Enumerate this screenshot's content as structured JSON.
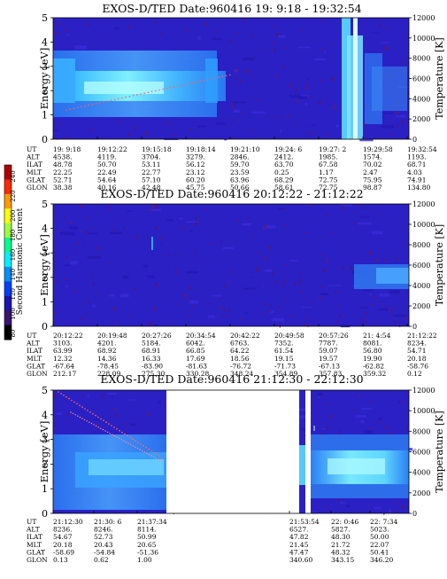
{
  "figure": {
    "colorbar": {
      "label": "Second Harmonic Current",
      "ticks": [
        "240",
        "220",
        "200",
        "180",
        "160",
        "140",
        "120",
        "100",
        "80"
      ],
      "colors": [
        "#b00000",
        "#ff2a00",
        "#ff9a00",
        "#ffff00",
        "#9aff40",
        "#00ff90",
        "#00f0ff",
        "#0090ff",
        "#0040ff",
        "#1a14b0",
        "#3a1470",
        "#000000"
      ]
    }
  },
  "chart_data": [
    {
      "type": "heatmap",
      "title": "EXOS-D/TED   Date:960416  19: 9:18 - 19:32:54",
      "ylabel": "Energy [eV]",
      "y2label": "Temperature [K]",
      "ylim": [
        0,
        5
      ],
      "y2lim": [
        0,
        12000
      ],
      "yticks": [
        "0",
        "1",
        "2",
        "3",
        "4",
        "5"
      ],
      "y2ticks": [
        "0",
        "2000",
        "4000",
        "6000",
        "8000",
        "10000",
        "12000"
      ],
      "row_labels": [
        "UT",
        "ALT",
        "ILAT",
        "MLT",
        "GLAT",
        "GLON"
      ],
      "columns": [
        [
          "19: 9:18",
          "4538.",
          "48.78",
          "22.25",
          "52.71",
          "38.38"
        ],
        [
          "19:12:22",
          "4119.",
          "50.70",
          "22.49",
          "54.64",
          "40.16"
        ],
        [
          "19:15:18",
          "3704.",
          "53.11",
          "22.77",
          "57.10",
          "42.48"
        ],
        [
          "19:18:14",
          "3279.",
          "56.12",
          "23.12",
          "60.20",
          "45.75"
        ],
        [
          "19:21:10",
          "2846.",
          "59.70",
          "23.59",
          "63.96",
          "50.66"
        ],
        [
          "19:24: 6",
          "2412.",
          "63.70",
          "0.25",
          "68.29",
          "58.61"
        ],
        [
          "19:27: 2",
          "1985.",
          "67.58",
          "1.17",
          "72.75",
          "72.75"
        ],
        [
          "19:29:58",
          "1574.",
          "70.02",
          "2.47",
          "75.95",
          "98.87"
        ],
        [
          "19:32:54",
          "1193.",
          "68.71",
          "4.03",
          "74.91",
          "134.80"
        ]
      ]
    },
    {
      "type": "heatmap",
      "title": "EXOS-D/TED   Date:960416  20:12:22 - 21:12:22",
      "ylabel": "Energy [eV]",
      "y2label": "Temperature [K]",
      "ylim": [
        0,
        5
      ],
      "y2lim": [
        0,
        12000
      ],
      "yticks": [
        "0",
        "1",
        "2",
        "3",
        "4",
        "5"
      ],
      "y2ticks": [
        "0",
        "2000",
        "4000",
        "6000",
        "8000",
        "10000",
        "12000"
      ],
      "row_labels": [
        "UT",
        "ALT",
        "ILAT",
        "MLT",
        "GLAT",
        "GLON"
      ],
      "columns": [
        [
          "20:12:22",
          "3103.",
          "63.99",
          "12.32",
          "-67.64",
          "212.17"
        ],
        [
          "20:19:48",
          "4201.",
          "68.92",
          "14.36",
          "-78.45",
          "228.09"
        ],
        [
          "20:27:26",
          "5184.",
          "68.91",
          "16.33",
          "-83.90",
          "275.30"
        ],
        [
          "20:34:54",
          "6042.",
          "66.85",
          "17.69",
          "-81.63",
          "330.28"
        ],
        [
          "20:42:22",
          "6763.",
          "64.22",
          "18.56",
          "-76.72",
          "348.24"
        ],
        [
          "20:49:58",
          "7352.",
          "61.54",
          "19.15",
          "-71.73",
          "354.89"
        ],
        [
          "20:57:26",
          "7787.",
          "59.07",
          "19.57",
          "-67.13",
          "357.83"
        ],
        [
          "21: 4:54",
          "8081.",
          "56.80",
          "19.90",
          "-62.82",
          "359.32"
        ],
        [
          "21:12:22",
          "8234.",
          "54.71",
          "20.18",
          "-58.76",
          "0.12"
        ]
      ]
    },
    {
      "type": "heatmap",
      "title": "EXOS-D/TED   Date:960416  21:12:30 - 22:12:30",
      "ylabel": "Energy [eV]",
      "y2label": "Temperature [K]",
      "ylim": [
        0,
        5
      ],
      "y2lim": [
        0,
        12000
      ],
      "yticks": [
        "0",
        "1",
        "2",
        "3",
        "4",
        "5"
      ],
      "y2ticks": [
        "0",
        "2000",
        "4000",
        "6000",
        "8000",
        "10000",
        "12000"
      ],
      "row_labels": [
        "UT",
        "ALT",
        "ILAT",
        "MLT",
        "GLAT",
        "GLON"
      ],
      "columns": [
        [
          "21:12:30",
          "8236.",
          "54.67",
          "20.18",
          "-58.69",
          "0.13"
        ],
        [
          "21:30: 6",
          "8246.",
          "52.73",
          "20.43",
          "-54.84",
          "0.62"
        ],
        [
          "21:37:34",
          "8114.",
          "50.99",
          "20.65",
          "-51.36",
          "1.00"
        ],
        [
          "21:53:54",
          "6527.",
          "47.82",
          "21.45",
          "47.47",
          "340.60"
        ],
        [
          "22: 0:46",
          "5827.",
          "48.30",
          "21.72",
          "48.32",
          "343.15"
        ],
        [
          "22: 7:34",
          "5023.",
          "50.00",
          "22.07",
          "50.41",
          "346.20"
        ]
      ]
    }
  ]
}
